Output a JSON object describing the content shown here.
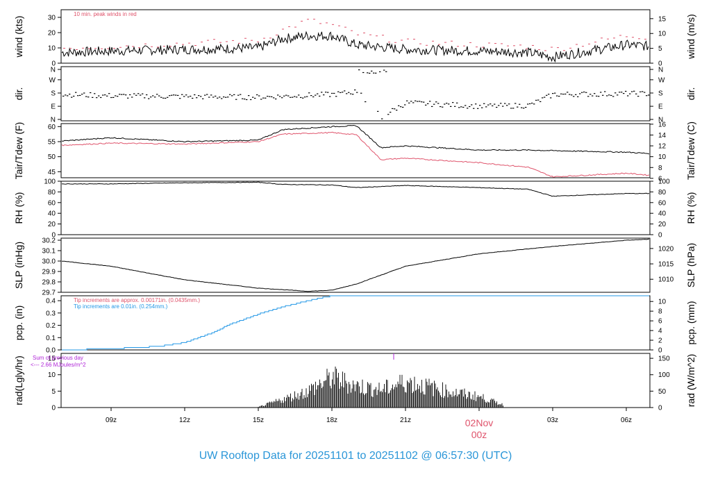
{
  "title": "UW Rooftop Data for 20251101  to  20251102 @ 06:57:30  (UTC)",
  "colors": {
    "red": "#df536b",
    "blue": "#2297e6",
    "purple": "#b026d8",
    "axis": "#000000",
    "title": "#2a96d8"
  },
  "date_marker": {
    "line1": "02Nov",
    "line2": "00z"
  },
  "x_ticks": [
    "09z",
    "12z",
    "15z",
    "18z",
    "21z",
    "02Nov 00z",
    "03z",
    "06z"
  ],
  "chart_data": [
    {
      "type": "line",
      "panel": "wind",
      "ylabel_left": "wind (kts)",
      "ylabel_right": "wind (m/s)",
      "ylim": [
        0,
        35
      ],
      "left_ticks": [
        "0",
        "10",
        "20",
        "30"
      ],
      "right_ticks": [
        "0",
        "5",
        "10",
        "15"
      ],
      "annotation": "10 min. peak winds in red",
      "x": [
        "07z",
        "09z",
        "12z",
        "15z",
        "16z",
        "17z",
        "18z",
        "19z",
        "21z",
        "00z",
        "02z",
        "03z",
        "06z",
        "07z"
      ],
      "series": [
        {
          "values": [
            7,
            8,
            9,
            10,
            16,
            18,
            18,
            12,
            9,
            8,
            7,
            4,
            12,
            11
          ],
          "color": "#000000"
        },
        {
          "values": [
            10,
            11,
            13,
            15,
            22,
            28,
            25,
            19,
            14,
            12,
            11,
            9,
            18,
            17
          ],
          "color": "#df536b"
        }
      ]
    },
    {
      "type": "scatter",
      "panel": "dir",
      "ylabel_left": "dir.",
      "ylabel_right": "dir.",
      "left_ticks": [
        "N",
        "E",
        "S",
        "W",
        "N"
      ],
      "right_ticks": [
        "N",
        "E",
        "S",
        "W",
        "N"
      ],
      "x": [
        "07z",
        "09z",
        "12z",
        "15z",
        "18z",
        "19z",
        "20z",
        "21z",
        "00z",
        "02z",
        "03z",
        "06z",
        "07z"
      ],
      "values_deg": [
        180,
        170,
        165,
        160,
        180,
        200,
        20,
        120,
        95,
        100,
        180,
        185,
        185
      ]
    },
    {
      "type": "line",
      "panel": "temp",
      "ylabel_left": "Tair/Tdew (F)",
      "ylabel_right": "Tair/Tdew (C)",
      "ylim": [
        43,
        61
      ],
      "left_ticks": [
        "45",
        "50",
        "55",
        "60"
      ],
      "right_ticks": [
        "6",
        "8",
        "10",
        "12",
        "14",
        "16"
      ],
      "x": [
        "07z",
        "09z",
        "12z",
        "15z",
        "16z",
        "18z",
        "19z",
        "20z",
        "21z",
        "00z",
        "02z",
        "03z",
        "06z",
        "07z"
      ],
      "series": [
        {
          "values": [
            55.2,
            56.3,
            55.0,
            55.5,
            59.0,
            60.0,
            60.3,
            53.0,
            53.6,
            52.2,
            52.2,
            52.0,
            51.5,
            51.0
          ],
          "color": "#000000"
        },
        {
          "values": [
            53.8,
            54.5,
            54.2,
            55.0,
            57.5,
            58.0,
            57.3,
            49.0,
            49.5,
            48.0,
            46.5,
            43.3,
            44.5,
            43.8
          ],
          "color": "#df536b"
        }
      ]
    },
    {
      "type": "line",
      "panel": "rh",
      "ylabel_left": "RH (%)",
      "ylabel_right": "RH (%)",
      "ylim": [
        0,
        100
      ],
      "left_ticks": [
        "0",
        "20",
        "40",
        "60",
        "80",
        "100"
      ],
      "right_ticks": [
        "0",
        "20",
        "40",
        "60",
        "80",
        "100"
      ],
      "x": [
        "07z",
        "09z",
        "12z",
        "15z",
        "16z",
        "18z",
        "19z",
        "21z",
        "00z",
        "02z",
        "03z",
        "06z",
        "07z"
      ],
      "values": [
        95,
        95,
        97,
        98,
        94,
        93,
        88,
        92,
        88,
        85,
        72,
        77,
        77
      ]
    },
    {
      "type": "line",
      "panel": "slp",
      "ylabel_left": "SLP (inHg)",
      "ylabel_right": "SLP (hPa)",
      "ylim": [
        29.7,
        30.22
      ],
      "left_ticks": [
        "29.7",
        "29.8",
        "29.9",
        "30.0",
        "30.1",
        "30.2"
      ],
      "right_ticks": [
        "1010",
        "1015",
        "1020"
      ],
      "x": [
        "07z",
        "09z",
        "12z",
        "15z",
        "17z",
        "18z",
        "19z",
        "21z",
        "00z",
        "03z",
        "06z",
        "07z"
      ],
      "values": [
        30.0,
        29.95,
        29.82,
        29.74,
        29.71,
        29.72,
        29.78,
        29.95,
        30.07,
        30.14,
        30.2,
        30.21
      ]
    },
    {
      "type": "line",
      "panel": "pcp",
      "ylabel_left": "pcp. (in)",
      "ylabel_right": "pcp. (mm)",
      "ylim": [
        0,
        0.44
      ],
      "left_ticks": [
        "0.0",
        "0.1",
        "0.2",
        "0.3",
        "0.4"
      ],
      "right_ticks": [
        "0",
        "2",
        "4",
        "6",
        "8",
        "10"
      ],
      "annotation_red": "Tip increments are approx. 0.00171in. (0.0435mm.)",
      "annotation_blue": "Tip increments are 0.01in. (0.254mm.)",
      "x": [
        "07z",
        "09z",
        "11z",
        "12z",
        "13z",
        "14z",
        "15z",
        "16z",
        "17z",
        "18z",
        "07z"
      ],
      "values": [
        0.0,
        0.01,
        0.03,
        0.06,
        0.13,
        0.22,
        0.29,
        0.35,
        0.4,
        0.44,
        0.44
      ],
      "color": "#2297e6"
    },
    {
      "type": "area",
      "panel": "rad",
      "ylabel_left": "rad(Lgly/hr)",
      "ylabel_right": "rad (W/m^2)",
      "ylim": [
        0,
        16.5
      ],
      "left_ticks": [
        "0",
        "5",
        "10",
        "15"
      ],
      "right_ticks": [
        "0",
        "50",
        "100",
        "150"
      ],
      "annotation_line1": "Sum of previous day",
      "annotation_line2": "<--- 2.66 MJoules/m^2",
      "x": [
        "15z",
        "16z",
        "17z",
        "18z",
        "19z",
        "20z",
        "21z",
        "22z",
        "23z",
        "00z",
        "01z"
      ],
      "values": [
        0.2,
        3.0,
        6.0,
        11.0,
        8.0,
        6.5,
        9.5,
        7.5,
        5.5,
        4.0,
        1.0
      ]
    }
  ]
}
